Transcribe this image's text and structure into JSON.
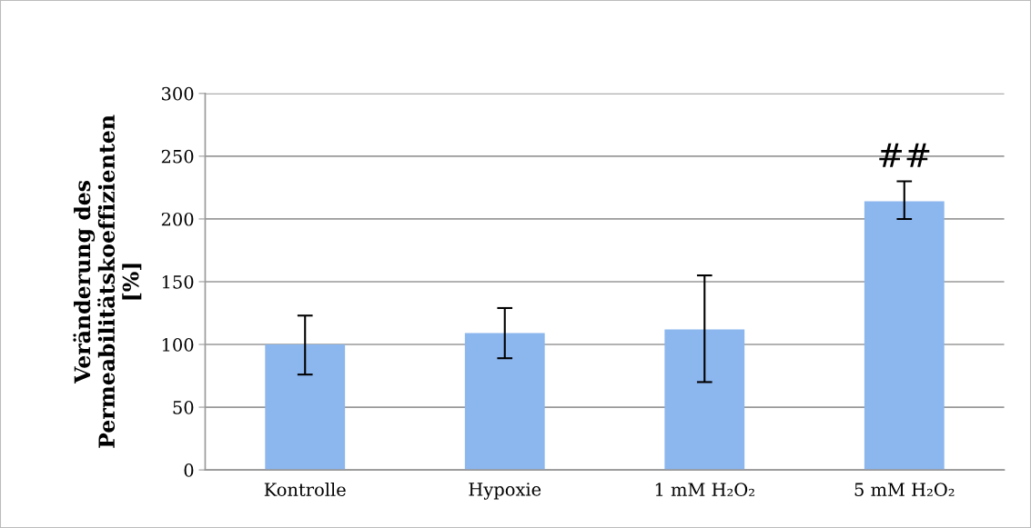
{
  "chart_data": {
    "type": "bar",
    "ylabel": "Veränderung des\nPermeabilitätskoeffizienten\n[%]",
    "categories": [
      "Kontrolle",
      "Hypoxie",
      "1 mM H₂O₂",
      "5 mM H₂O₂"
    ],
    "values": [
      100,
      109,
      112,
      214
    ],
    "errors": [
      [
        76,
        123
      ],
      [
        89,
        129
      ],
      [
        70,
        155
      ],
      [
        200,
        230
      ]
    ],
    "color": "#8cb6ee",
    "ylim": [
      0,
      300
    ],
    "yticks": [
      0,
      50,
      100,
      150,
      200,
      250,
      300
    ],
    "grid": "y",
    "annotations": [
      "##"
    ]
  }
}
